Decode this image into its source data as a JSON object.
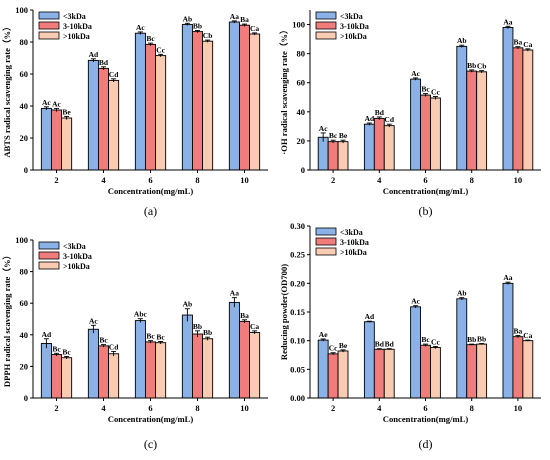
{
  "colors": {
    "lt3": "#8ab2e6",
    "mid": "#f07c7c",
    "gt10": "#f8cbb2",
    "axis": "#000000"
  },
  "chart_data": [
    {
      "type": "bar",
      "panel": "(a)",
      "ylabel": "ABTS radical scavenging rate（%）",
      "xlabel": "Concentration(mg/mL)",
      "categories": [
        "2",
        "4",
        "6",
        "8",
        "10"
      ],
      "ylim": [
        0,
        100
      ],
      "yticks": [
        "0",
        "20",
        "40",
        "60",
        "80",
        "100"
      ],
      "legend_position": "top-left",
      "series": [
        {
          "name": "<3kDa",
          "color_key": "lt3",
          "values": [
            38.5,
            68.5,
            85.5,
            91,
            92.5
          ],
          "errors": [
            1.0,
            1.0,
            0.8,
            0.7,
            0.7
          ],
          "sig": [
            "Ac",
            "Ad",
            "Ac",
            "Ab",
            "Aa"
          ]
        },
        {
          "name": "3-10kDa",
          "color_key": "mid",
          "values": [
            37.5,
            63.5,
            78.5,
            86.5,
            90.5
          ],
          "errors": [
            1.0,
            1.0,
            0.8,
            0.7,
            0.7
          ],
          "sig": [
            "Ac",
            "Bd",
            "Bc",
            "Bb",
            "Ba"
          ]
        },
        {
          "name": ">10kDa",
          "color_key": "gt10",
          "values": [
            32.5,
            56,
            71.5,
            80.5,
            85
          ],
          "errors": [
            1.0,
            1.0,
            0.8,
            0.7,
            0.7
          ],
          "sig": [
            "Be",
            "Cd",
            "Cc",
            "Cb",
            "Ca"
          ]
        }
      ]
    },
    {
      "type": "bar",
      "panel": "(b)",
      "ylabel": "·OH radical scavenging rate（%）",
      "xlabel": "Concentration(mg/mL)",
      "categories": [
        "2",
        "4",
        "6",
        "8",
        "10"
      ],
      "ylim": [
        0,
        110
      ],
      "yticks": [
        "0",
        "20",
        "40",
        "60",
        "80",
        "100"
      ],
      "legend_position": "top-left",
      "series": [
        {
          "name": "<3kDa",
          "color_key": "lt3",
          "values": [
            22.5,
            31.5,
            62.5,
            85,
            98
          ],
          "errors": [
            3.0,
            0.8,
            0.8,
            0.8,
            0.8
          ],
          "sig": [
            "Ac",
            "Ad",
            "Ac",
            "Ab",
            "Aa"
          ]
        },
        {
          "name": "3-10kDa",
          "color_key": "mid",
          "values": [
            19.5,
            35.5,
            51.5,
            68,
            84
          ],
          "errors": [
            1.0,
            1.0,
            1.0,
            0.8,
            0.8
          ],
          "sig": [
            "Bc",
            "Bd",
            "Bc",
            "Bb",
            "Ba"
          ]
        },
        {
          "name": ">10kDa",
          "color_key": "gt10",
          "values": [
            19.5,
            30.5,
            49.5,
            67.5,
            82.5
          ],
          "errors": [
            1.0,
            1.0,
            1.0,
            0.8,
            0.8
          ],
          "sig": [
            "Be",
            "Cd",
            "Cc",
            "Cb",
            "Ca"
          ]
        }
      ]
    },
    {
      "type": "bar",
      "panel": "(c)",
      "ylabel": "DPPH  radical scavenging rate（%）",
      "xlabel": "Concentration(mg/mL)",
      "categories": [
        "2",
        "4",
        "6",
        "8",
        "10"
      ],
      "ylim": [
        0,
        100
      ],
      "yticks": [
        "0",
        "20",
        "40",
        "60",
        "80",
        "100"
      ],
      "legend_position": "top-left",
      "series": [
        {
          "name": "<3kDa",
          "color_key": "lt3",
          "values": [
            34.5,
            43.5,
            49,
            52.5,
            60.5
          ],
          "errors": [
            3.0,
            2.5,
            1.2,
            4.0,
            3.0
          ],
          "sig": [
            "Ad",
            "Ac",
            "Abc",
            "Ab",
            "Aa"
          ]
        },
        {
          "name": "3-10kDa",
          "color_key": "mid",
          "values": [
            27.5,
            33,
            35.5,
            40.5,
            48.5
          ],
          "errors": [
            0.8,
            0.8,
            0.8,
            2.0,
            1.0
          ],
          "sig": [
            "Bc",
            "Bc",
            "Bc",
            "Bb",
            "Ba"
          ]
        },
        {
          "name": ">10kDa",
          "color_key": "gt10",
          "values": [
            25.5,
            28,
            35,
            37.5,
            41.5
          ],
          "errors": [
            0.8,
            1.5,
            0.8,
            1.0,
            1.0
          ],
          "sig": [
            "Bc",
            "Cd",
            "Bc",
            "Bb",
            "Ca"
          ]
        }
      ]
    },
    {
      "type": "bar",
      "panel": "(d)",
      "ylabel": "Reducing powder(OD700)",
      "xlabel": "Concentration(mg/mL)",
      "categories": [
        "2",
        "4",
        "6",
        "8",
        "10"
      ],
      "ylim": [
        0,
        0.3
      ],
      "yticks": [
        "0.00",
        "0.05",
        "0.10",
        "0.15",
        "0.20",
        "0.25",
        "0.30"
      ],
      "legend_position": "top-left",
      "series": [
        {
          "name": "<3kDa",
          "color_key": "lt3",
          "values": [
            0.101,
            0.133,
            0.159,
            0.173,
            0.2
          ],
          "errors": [
            0.002,
            0.001,
            0.002,
            0.002,
            0.002
          ],
          "sig": [
            "Ae",
            "Ad",
            "Ac",
            "Ab",
            "Aa"
          ]
        },
        {
          "name": "3-10kDa",
          "color_key": "mid",
          "values": [
            0.077,
            0.085,
            0.092,
            0.093,
            0.107
          ],
          "errors": [
            0.002,
            0.001,
            0.002,
            0.001,
            0.002
          ],
          "sig": [
            "Cc",
            "Bd",
            "Bc",
            "Bb",
            "Ba"
          ]
        },
        {
          "name": ">10kDa",
          "color_key": "gt10",
          "values": [
            0.082,
            0.085,
            0.088,
            0.094,
            0.1
          ],
          "errors": [
            0.002,
            0.001,
            0.002,
            0.001,
            0.001
          ],
          "sig": [
            "Be",
            "Bd",
            "Cc",
            "Bb",
            "Ca"
          ]
        }
      ]
    }
  ]
}
